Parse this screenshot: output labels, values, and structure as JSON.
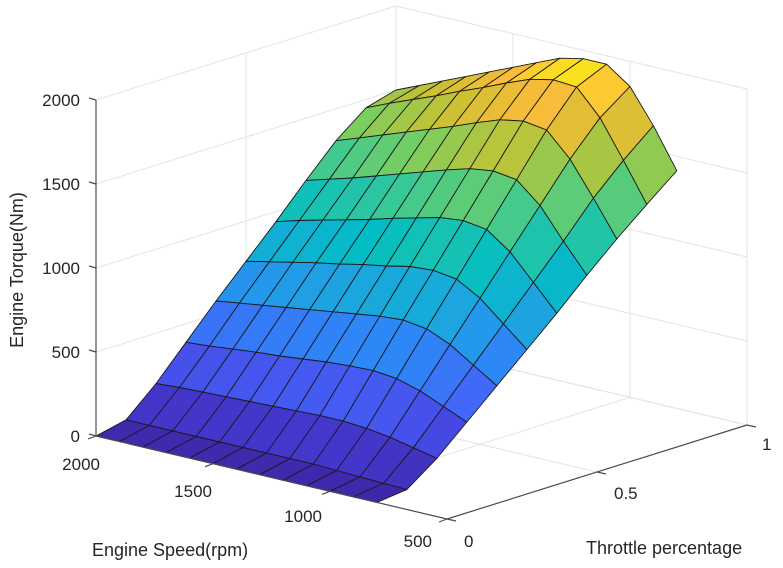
{
  "chart_data": {
    "type": "surface3d",
    "title": "",
    "xlabel": "Engine Speed(rpm)",
    "ylabel": "Throttle percentage",
    "zlabel": "Engine Torque(Nm)",
    "x_ticks": [
      500,
      1000,
      1500,
      2000
    ],
    "y_ticks": [
      0,
      0.5,
      1
    ],
    "z_ticks": [
      0,
      500,
      1000,
      1500,
      2000
    ],
    "xlim": [
      500,
      2000
    ],
    "ylim": [
      0,
      1
    ],
    "zlim": [
      0,
      2000
    ],
    "grid": true,
    "colormap": "parula",
    "edge_color": "#1a1a1a",
    "engine_speed_rpm": [
      2000,
      1900,
      1800,
      1700,
      1600,
      1500,
      1400,
      1300,
      1200,
      1100,
      1000,
      900,
      800
    ],
    "throttle": [
      0,
      0.1,
      0.2,
      0.3,
      0.4,
      0.5,
      0.6,
      0.7,
      0.8,
      0.9,
      1.0
    ],
    "max_torque_nm_by_speed": [
      1500,
      1560,
      1620,
      1680,
      1740,
      1800,
      1860,
      1920,
      1950,
      1950,
      1850,
      1650,
      1415
    ],
    "torque_nm": [
      [
        0,
        40,
        200,
        390,
        580,
        760,
        940,
        1130,
        1310,
        1450,
        1500
      ],
      [
        0,
        40,
        210,
        400,
        600,
        790,
        980,
        1170,
        1360,
        1510,
        1560
      ],
      [
        0,
        40,
        215,
        415,
        620,
        820,
        1015,
        1210,
        1410,
        1565,
        1620
      ],
      [
        0,
        40,
        220,
        430,
        640,
        850,
        1050,
        1255,
        1460,
        1620,
        1680
      ],
      [
        0,
        40,
        225,
        440,
        660,
        875,
        1085,
        1300,
        1510,
        1680,
        1740
      ],
      [
        0,
        40,
        230,
        455,
        680,
        905,
        1125,
        1345,
        1560,
        1735,
        1800
      ],
      [
        0,
        40,
        235,
        470,
        700,
        930,
        1160,
        1390,
        1615,
        1795,
        1860
      ],
      [
        0,
        40,
        240,
        480,
        720,
        960,
        1195,
        1430,
        1665,
        1850,
        1920
      ],
      [
        0,
        40,
        240,
        485,
        730,
        970,
        1210,
        1450,
        1690,
        1880,
        1950
      ],
      [
        0,
        35,
        230,
        470,
        710,
        950,
        1190,
        1430,
        1670,
        1870,
        1950
      ],
      [
        0,
        30,
        210,
        430,
        650,
        870,
        1090,
        1310,
        1530,
        1720,
        1850
      ],
      [
        0,
        25,
        180,
        370,
        560,
        750,
        940,
        1130,
        1330,
        1500,
        1650
      ],
      [
        0,
        20,
        150,
        310,
        470,
        630,
        790,
        960,
        1120,
        1270,
        1415
      ]
    ]
  },
  "axes": {
    "z_tick_labels": [
      "0",
      "500",
      "1000",
      "1500",
      "2000"
    ],
    "x_tick_labels": [
      "2000",
      "1500",
      "1000",
      "500"
    ],
    "y_tick_labels": [
      "0",
      "0.5",
      "1"
    ]
  }
}
